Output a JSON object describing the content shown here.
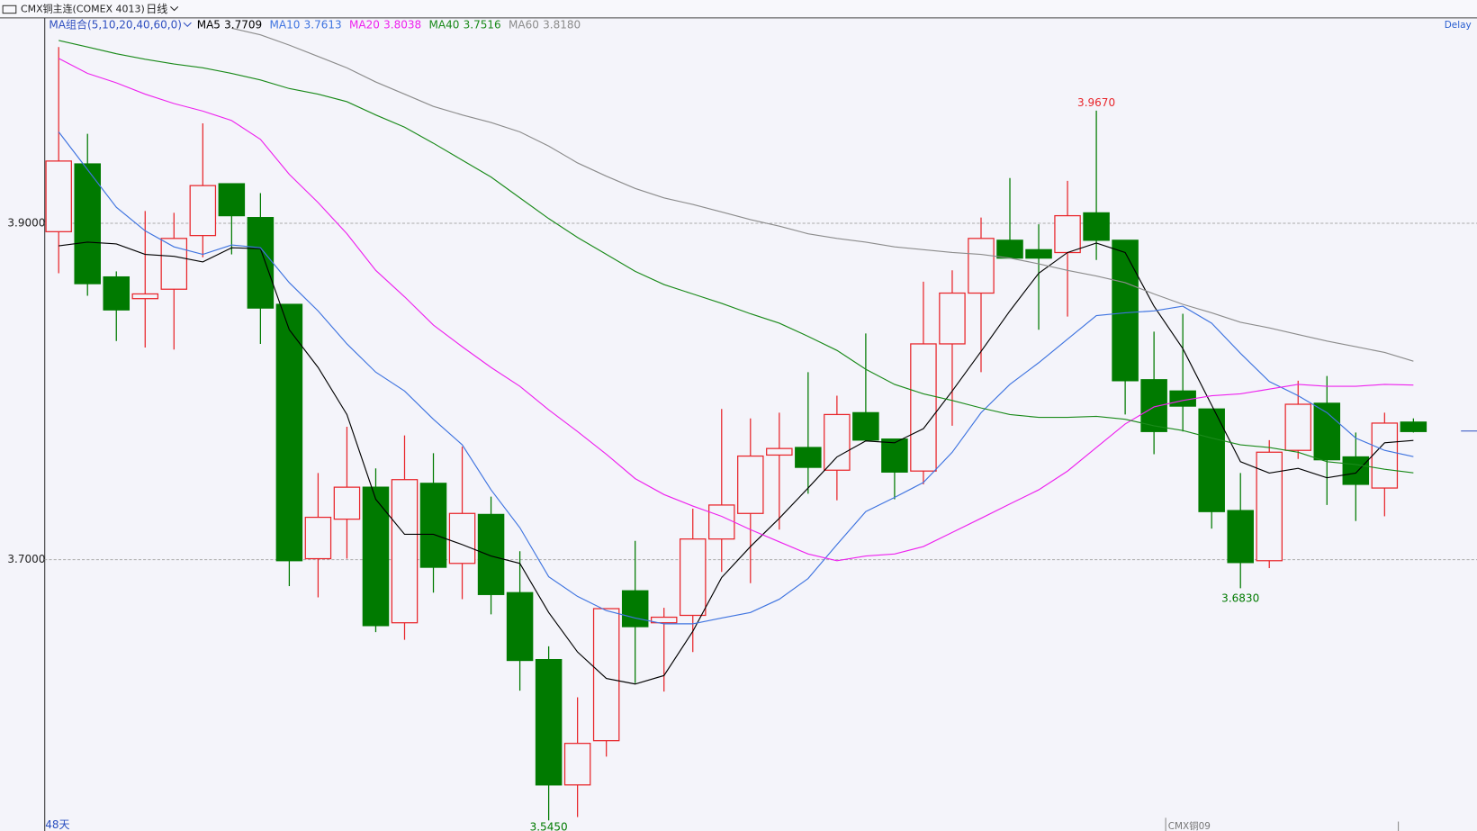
{
  "header": {
    "title": "CMX铜主连(COMEX 4013)",
    "period": "日线",
    "delay": "Delay"
  },
  "chart_data": {
    "type": "candlestick",
    "indicator": "MA组合(5,10,20,40,60,0)",
    "ylim": [
      3.5387,
      4.0221
    ],
    "yticks": [
      {
        "value": 3.7,
        "label": "3.7000"
      },
      {
        "value": 3.9,
        "label": "3.9000"
      }
    ],
    "grid": true,
    "up_color": "#e8262b",
    "down_color": "#007a00",
    "open": [
      3.895,
      3.9353,
      3.8681,
      3.8552,
      3.8608,
      3.8927,
      3.9235,
      3.9034,
      3.8518,
      3.7006,
      3.7241,
      3.7431,
      3.6625,
      3.7454,
      3.6978,
      3.7269,
      3.6804,
      3.6406,
      3.5661,
      3.5924,
      3.6815,
      3.6625,
      3.6669,
      3.7123,
      3.7275,
      3.7622,
      3.7667,
      3.7532,
      3.7874,
      3.7717,
      3.7527,
      3.8283,
      3.8585,
      3.8899,
      3.8843,
      3.8826,
      3.9062,
      3.8899,
      3.807,
      3.8003,
      3.7896,
      3.7292,
      3.6994,
      3.765,
      3.793,
      3.7611,
      3.7426,
      3.7818
    ],
    "high": [
      4.0048,
      3.9532,
      3.8714,
      3.9073,
      3.9062,
      3.9594,
      3.9235,
      3.9179,
      3.8518,
      3.7515,
      3.779,
      3.7543,
      3.7739,
      3.7633,
      3.7672,
      3.7375,
      3.705,
      3.6485,
      3.6182,
      3.6709,
      3.7112,
      3.6714,
      3.7303,
      3.7896,
      3.784,
      3.7874,
      3.8115,
      3.7975,
      3.8345,
      3.7717,
      3.8653,
      3.872,
      3.9034,
      3.9269,
      3.8994,
      3.9252,
      3.967,
      3.8899,
      3.8356,
      3.8462,
      3.7896,
      3.7515,
      3.7711,
      3.8064,
      3.8092,
      3.7756,
      3.7874,
      3.784
    ],
    "low": [
      3.8703,
      3.8569,
      3.83,
      3.8261,
      3.8249,
      3.8798,
      3.8815,
      3.8283,
      3.6843,
      3.6776,
      3.7006,
      3.6569,
      3.6524,
      3.6804,
      3.6765,
      3.6675,
      3.6221,
      3.545,
      3.547,
      3.5829,
      3.6266,
      3.6216,
      3.6451,
      3.6927,
      3.686,
      3.7179,
      3.7392,
      3.7353,
      3.7711,
      3.7359,
      3.7448,
      3.7796,
      3.8115,
      3.8793,
      3.8367,
      3.8445,
      3.8782,
      3.7863,
      3.7627,
      3.7762,
      3.7185,
      3.683,
      3.695,
      3.7599,
      3.7325,
      3.723,
      3.7258,
      3.7756
    ],
    "close": [
      3.937,
      3.8641,
      3.8485,
      3.858,
      3.891,
      3.9224,
      3.9045,
      3.8496,
      3.6994,
      3.7252,
      3.7431,
      3.6608,
      3.7476,
      3.6955,
      3.7275,
      3.6793,
      3.6401,
      3.5661,
      3.5908,
      3.6709,
      3.6602,
      3.6658,
      3.7123,
      3.7325,
      3.7616,
      3.7661,
      3.7549,
      3.7863,
      3.7711,
      3.7521,
      3.8283,
      3.8585,
      3.891,
      3.8793,
      3.8793,
      3.9045,
      3.8899,
      3.8064,
      3.7762,
      3.7913,
      3.7286,
      3.6983,
      3.7639,
      3.7924,
      3.7594,
      3.7448,
      3.7812,
      3.7762
    ],
    "high_labels": [
      null,
      null,
      null,
      null,
      null,
      null,
      null,
      null,
      null,
      null,
      null,
      null,
      null,
      null,
      null,
      null,
      null,
      null,
      null,
      null,
      null,
      null,
      null,
      null,
      null,
      null,
      null,
      null,
      null,
      null,
      null,
      null,
      null,
      null,
      null,
      null,
      "3.9670",
      null,
      null,
      null,
      null,
      null,
      null,
      null,
      null,
      null,
      null,
      null
    ],
    "low_labels": [
      null,
      null,
      null,
      null,
      null,
      null,
      null,
      null,
      null,
      null,
      null,
      null,
      null,
      null,
      null,
      null,
      null,
      "3.5450",
      null,
      null,
      null,
      null,
      null,
      null,
      null,
      null,
      null,
      null,
      null,
      null,
      null,
      null,
      null,
      null,
      null,
      null,
      null,
      null,
      null,
      null,
      null,
      "3.6830",
      null,
      null,
      null,
      null,
      null,
      null
    ],
    "series": [
      {
        "name": "MA5",
        "label": "3.7709",
        "color": "#000000",
        "values": [
          3.8866,
          3.8888,
          3.8877,
          3.8815,
          3.8804,
          3.877,
          3.8854,
          3.8849,
          3.8367,
          3.8143,
          3.7863,
          3.7359,
          3.7151,
          3.7151,
          3.709,
          3.7022,
          3.6978,
          3.6686,
          3.6451,
          3.6294,
          3.6261,
          3.6311,
          3.6574,
          3.6894,
          3.7078,
          3.7246,
          3.7426,
          3.7611,
          3.7706,
          3.7695,
          3.7779,
          3.8003,
          3.8238,
          3.8479,
          3.8703,
          3.8826,
          3.8882,
          3.8826,
          3.8507,
          3.8255,
          3.7919,
          3.7583,
          3.7515,
          3.7543,
          3.7487,
          3.7515,
          3.7695,
          3.7709
        ]
      },
      {
        "name": "MA10",
        "label": "3.7613",
        "color": "#3f74e0",
        "values": [
          3.9543,
          3.9319,
          3.9095,
          3.8955,
          3.886,
          3.8815,
          3.8871,
          3.8854,
          3.8647,
          3.8479,
          3.8283,
          3.8115,
          3.8003,
          3.7835,
          3.7683,
          3.7415,
          3.719,
          3.6899,
          3.6782,
          3.6697,
          3.6653,
          3.6619,
          3.6619,
          3.6653,
          3.6686,
          3.6765,
          3.6888,
          3.709,
          3.7286,
          3.737,
          3.7459,
          3.7639,
          3.7874,
          3.8042,
          3.8171,
          3.8311,
          3.8451,
          3.8468,
          3.8479,
          3.8507,
          3.8406,
          3.8227,
          3.8059,
          3.7975,
          3.7874,
          3.7723,
          3.765,
          3.7613
        ]
      },
      {
        "name": "MA20",
        "label": "3.8038",
        "color": "#ee22ee",
        "values": [
          3.998,
          3.9891,
          3.9835,
          3.9768,
          3.9712,
          3.9667,
          3.9611,
          3.9499,
          3.9291,
          3.9123,
          3.8938,
          3.872,
          3.8563,
          3.8395,
          3.8266,
          3.8143,
          3.8031,
          3.7891,
          3.7762,
          3.7627,
          3.7482,
          3.7387,
          3.7319,
          3.7258,
          3.7179,
          3.7106,
          3.7034,
          3.6994,
          3.7022,
          3.7034,
          3.7078,
          3.7162,
          3.7246,
          3.7331,
          3.7415,
          3.7527,
          3.7667,
          3.7807,
          3.7908,
          3.7947,
          3.7975,
          3.7986,
          3.8014,
          3.8042,
          3.8031,
          3.8031,
          3.8042,
          3.8038
        ]
      },
      {
        "name": "MA40",
        "label": "3.7516",
        "color": "#1a8a1a",
        "values": [
          4.0087,
          4.0048,
          4.0008,
          3.9975,
          3.9947,
          3.9924,
          3.9891,
          3.9852,
          3.9801,
          3.9768,
          3.9723,
          3.9644,
          3.9571,
          3.9476,
          3.9375,
          3.9275,
          3.9151,
          3.9028,
          3.8916,
          3.8815,
          3.8714,
          3.8636,
          3.858,
          3.8524,
          3.8462,
          3.8406,
          3.8328,
          3.8244,
          3.8132,
          3.8042,
          3.7986,
          3.7947,
          3.7902,
          3.7863,
          3.7846,
          3.7846,
          3.7852,
          3.7835,
          3.7796,
          3.7768,
          3.7723,
          3.7683,
          3.7667,
          3.7639,
          3.7583,
          3.7566,
          3.7538,
          3.7516
        ]
      },
      {
        "name": "MA60",
        "label": "3.8180",
        "color": "#8c8c8c",
        "values": [
          null,
          null,
          null,
          null,
          null,
          null,
          4.016,
          4.012,
          4.0059,
          3.9992,
          3.9924,
          3.984,
          3.9768,
          3.9695,
          3.9644,
          3.9599,
          3.9543,
          3.9459,
          3.9359,
          3.928,
          3.9207,
          3.9151,
          3.9112,
          3.9067,
          3.9022,
          3.8983,
          3.8938,
          3.891,
          3.8888,
          3.886,
          3.8843,
          3.8826,
          3.8815,
          3.8793,
          3.8759,
          3.872,
          3.8686,
          3.8647,
          3.858,
          3.8518,
          3.8468,
          3.8412,
          3.8378,
          3.8339,
          3.83,
          3.8266,
          3.8232,
          3.818
        ]
      }
    ],
    "footer_left": "48天",
    "footer_contract": "CMX铜09"
  }
}
